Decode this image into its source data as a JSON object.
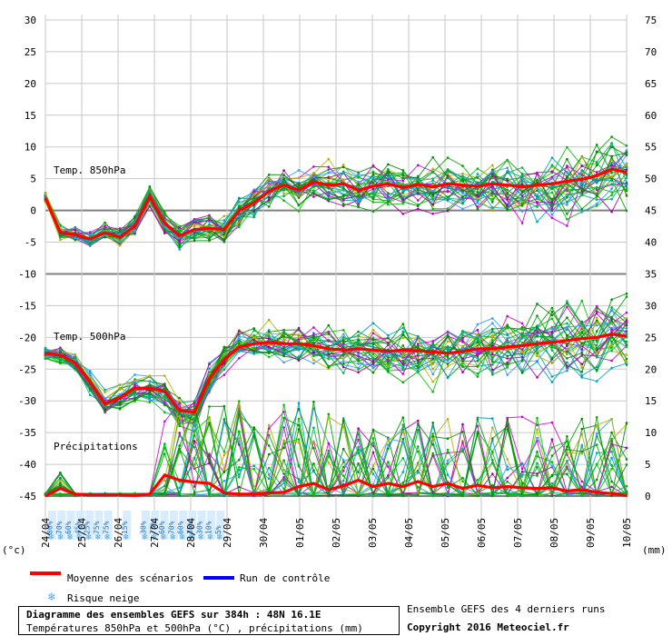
{
  "chart_data": {
    "type": "line",
    "sections": {
      "t850": "Temp. 850hPa",
      "t500": "Temp. 500hPa",
      "precip": "Précipitations"
    },
    "x_labels": [
      "24/04",
      "25/04",
      "26/04",
      "27/04",
      "28/04",
      "29/04",
      "30/04",
      "01/05",
      "02/05",
      "03/05",
      "04/05",
      "05/05",
      "06/05",
      "07/05",
      "08/05",
      "09/05",
      "10/05"
    ],
    "left_ticks": [
      "30",
      "25",
      "20",
      "15",
      "10",
      "5",
      "0",
      "-5",
      "-10",
      "-15",
      "-20",
      "-25",
      "-30",
      "-35",
      "-40",
      "-45"
    ],
    "right_ticks": [
      "75",
      "70",
      "65",
      "60",
      "55",
      "50",
      "45",
      "40",
      "35",
      "30",
      "25",
      "20",
      "15",
      "10",
      "5",
      "0"
    ],
    "left_unit": "(°c)",
    "right_unit": "(mm)",
    "ylim_left": [
      -45,
      30
    ],
    "ylim_right": [
      0,
      75
    ],
    "highlight_lines": [
      0,
      -10,
      -45
    ],
    "snow_risk_labels": [
      "80%",
      "70%",
      "60%",
      "45%",
      "25%",
      "75%",
      "75%",
      "",
      "15%",
      "",
      "30%",
      "75%",
      "60%",
      "70%",
      "60%",
      "35%",
      "30%",
      "10%",
      "5%"
    ],
    "t850_mean": [
      2,
      -3.5,
      -3.8,
      -4.5,
      -3.5,
      -4.2,
      -2.5,
      2.2,
      -2,
      -4,
      -3,
      -2.8,
      -3,
      0,
      1.2,
      3,
      4,
      3.2,
      4.5,
      4,
      4.2,
      3.2,
      3.8,
      4.2,
      3.6,
      4.1,
      3.7,
      4.2,
      4.0,
      3.8,
      4.2,
      4.0,
      3.7,
      4.0,
      4.2,
      4.6,
      4.9,
      5.5,
      6.5,
      6.0
    ],
    "t500_mean": [
      -22.5,
      -22.8,
      -24,
      -27,
      -30.5,
      -29.5,
      -28,
      -28,
      -28.5,
      -31.5,
      -31.8,
      -26.5,
      -23.5,
      -21.5,
      -21,
      -20.8,
      -21,
      -21,
      -21.3,
      -21.8,
      -22,
      -21.8,
      -22,
      -22.2,
      -22,
      -22.1,
      -22.3,
      -22.5,
      -22.2,
      -21.8,
      -21.8,
      -21.5,
      -21.3,
      -21,
      -20.8,
      -20.5,
      -20.2,
      -20,
      -19.5,
      -19.8
    ],
    "precip_mean": [
      0,
      1.2,
      0.3,
      0.2,
      0.2,
      0.2,
      0.1,
      0.3,
      3.3,
      2.5,
      2.2,
      2,
      0.5,
      0.3,
      0.3,
      0.5,
      0.6,
      1.5,
      2.0,
      1.0,
      1.6,
      2.5,
      1.5,
      2.0,
      1.5,
      2.3,
      1.5,
      2.0,
      1.2,
      1.7,
      1.3,
      1.5,
      1.3,
      1.2,
      1.3,
      0.8,
      1.0,
      0.6,
      0.4,
      0.1
    ],
    "legend": {
      "mean_label": "Moyenne des scénarios",
      "control_label": "Run de contrôle",
      "snow_label": "Risque neige",
      "mean_color": "#ff0000",
      "control_color": "#0000ff"
    }
  },
  "footer": {
    "title": "Diagramme des ensembles GEFS sur 384h : 48N 16.1E",
    "subtitle": "Températures 850hPa et 500hPa (°C) , précipitations (mm)",
    "runs_label": "Ensemble GEFS des 4 derniers runs",
    "copyright": "Copyright 2016 Meteociel.fr"
  },
  "colors": {
    "member_palette": [
      "#00a000",
      "#00c000",
      "#008800",
      "#cc00cc",
      "#a000a0",
      "#00a0c0",
      "#3399ff",
      "#b0b000",
      "#00b050",
      "#009000"
    ],
    "grid": "#c8c8c8",
    "highlight": "#808080"
  }
}
